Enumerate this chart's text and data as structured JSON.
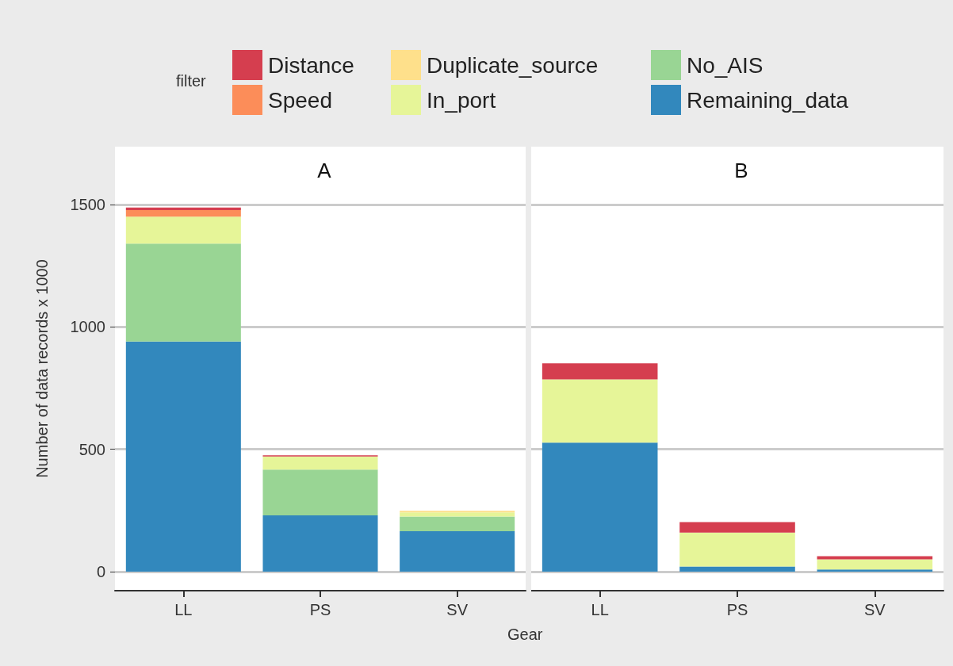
{
  "chart_data": [
    {
      "type": "bar",
      "stacked": true,
      "title": "A",
      "xlabel": "Gear",
      "ylabel": "Number of data records x 1000",
      "legend_title": "filter",
      "legend": "top",
      "grid": "y",
      "categories": [
        "LL",
        "PS",
        "SV"
      ],
      "ylim": [
        -78,
        1736
      ],
      "yticks": [
        0,
        500,
        1000,
        1500
      ],
      "series": [
        {
          "name": "Remaining_data",
          "color": "#3288bd",
          "values": [
            940,
            230,
            165
          ]
        },
        {
          "name": "No_AIS",
          "color": "#99d594",
          "values": [
            400,
            187,
            60
          ]
        },
        {
          "name": "In_port",
          "color": "#e6f598",
          "values": [
            110,
            53,
            17
          ]
        },
        {
          "name": "Duplicate_source",
          "color": "#fee08b",
          "values": [
            0,
            0,
            6
          ]
        },
        {
          "name": "Speed",
          "color": "#fc8d59",
          "values": [
            27,
            0,
            0
          ]
        },
        {
          "name": "Distance",
          "color": "#d53e4f",
          "values": [
            10,
            5,
            0
          ]
        }
      ]
    },
    {
      "type": "bar",
      "stacked": true,
      "title": "B",
      "grid": "y",
      "tick_labels": "x",
      "categories": [
        "LL",
        "PS",
        "SV"
      ],
      "ylim": [
        -78,
        1736
      ],
      "yticks": [
        0,
        500,
        1000,
        1500
      ],
      "series": [
        {
          "color": "#3288bd",
          "values": [
            527,
            21,
            9
          ]
        },
        {
          "color": "#e6f598",
          "values": [
            258,
            138,
            41
          ]
        },
        {
          "color": "#d53e4f",
          "values": [
            66,
            43,
            13
          ]
        }
      ]
    }
  ]
}
